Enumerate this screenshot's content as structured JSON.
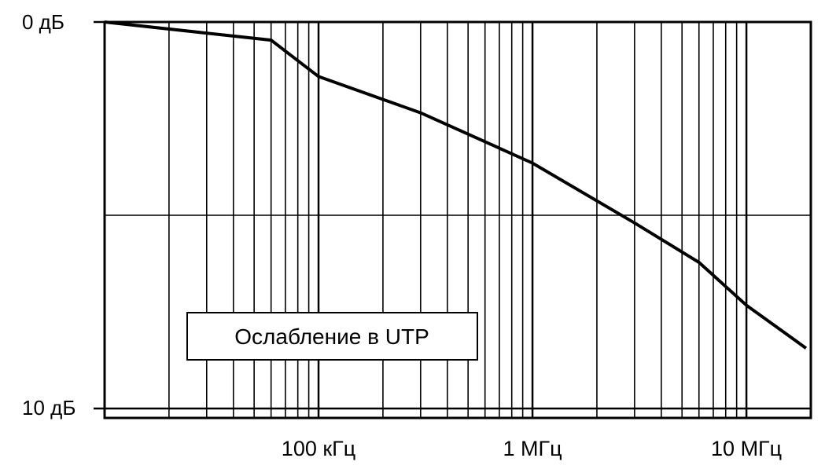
{
  "chart_data": {
    "type": "line",
    "title": "",
    "xlabel": "",
    "ylabel": "",
    "x_scale": "log",
    "x_range_hz": [
      10000,
      20000000
    ],
    "y_range_db": [
      0,
      10
    ],
    "y_inverted": true,
    "grid": true,
    "x_ticks": [
      {
        "value": 100000,
        "label": "100 кГц"
      },
      {
        "value": 1000000,
        "label": "1 МГц"
      },
      {
        "value": 10000000,
        "label": "10 МГц"
      }
    ],
    "y_ticks": [
      {
        "value": 0,
        "label": "0 дБ"
      },
      {
        "value": 10,
        "label": "10 дБ"
      }
    ],
    "series": [
      {
        "name": "Ослабление в UTP",
        "x": [
          10000,
          60000,
          100000,
          300000,
          1000000,
          3000000,
          6000000,
          10000000,
          19000000
        ],
        "y": [
          0,
          0.47,
          1.41,
          2.35,
          3.65,
          5.2,
          6.22,
          7.33,
          8.44
        ]
      }
    ],
    "legend": {
      "placement": "bottom-left",
      "text": "Ослабление в UTP"
    },
    "colors": {
      "line": "#000000",
      "grid": "#000000",
      "background": "#ffffff"
    }
  }
}
